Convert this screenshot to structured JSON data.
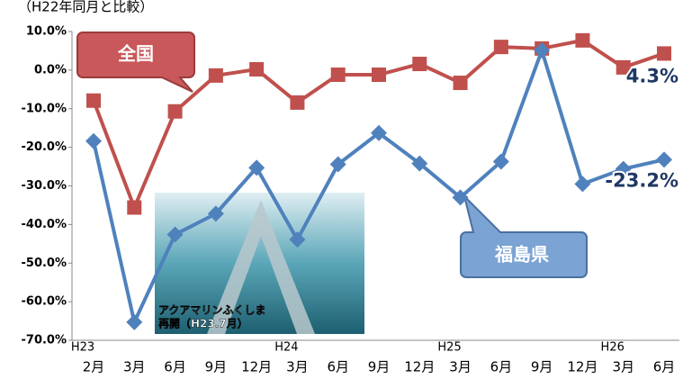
{
  "chart_data": {
    "type": "line",
    "subtitle": "（H22年同月と比較）",
    "categories": [
      "2月",
      "3月",
      "6月",
      "9月",
      "12月",
      "3月",
      "6月",
      "9月",
      "12月",
      "3月",
      "6月",
      "9月",
      "12月",
      "3月",
      "6月"
    ],
    "category_groups": [
      "H23",
      null,
      null,
      null,
      null,
      "H24",
      null,
      null,
      null,
      "H25",
      null,
      null,
      null,
      "H26",
      null
    ],
    "series": [
      {
        "name": "全国",
        "color": "#c0504d",
        "values": [
          -7.9,
          -35.6,
          -10.7,
          -1.4,
          0.2,
          -8.4,
          -1.2,
          -1.2,
          1.6,
          -3.3,
          6.0,
          5.6,
          7.7,
          0.7,
          4.3
        ],
        "value_labels": [
          null,
          null,
          null,
          null,
          null,
          null,
          null,
          null,
          null,
          null,
          null,
          null,
          null,
          null,
          "4.3%"
        ]
      },
      {
        "name": "福島県",
        "color": "#4f81bd",
        "values": [
          -18.4,
          -65.3,
          -42.6,
          -37.2,
          -25.3,
          -43.9,
          -24.4,
          -16.3,
          -24.2,
          -33.0,
          -23.7,
          5.1,
          -29.5,
          -25.6,
          -23.2
        ],
        "value_labels": [
          null,
          null,
          null,
          null,
          null,
          null,
          null,
          null,
          null,
          null,
          null,
          null,
          null,
          null,
          "-23.2%"
        ]
      }
    ],
    "ylim": [
      -70,
      10
    ],
    "yticks": [
      {
        "value": 10,
        "label": "10.0%"
      },
      {
        "value": 0,
        "label": "0.0%"
      },
      {
        "value": -10,
        "label": "-10.0%"
      },
      {
        "value": -20,
        "label": "-20.0%"
      },
      {
        "value": -30,
        "label": "-30.0%"
      },
      {
        "value": -40,
        "label": "-40.0%"
      },
      {
        "value": -50,
        "label": "-50.0%"
      },
      {
        "value": -60,
        "label": "-60.0%"
      },
      {
        "value": -70,
        "label": "-70.0%"
      }
    ],
    "photo_caption": [
      "アクアマリンふくしま",
      "再開（H23.7月）"
    ]
  }
}
